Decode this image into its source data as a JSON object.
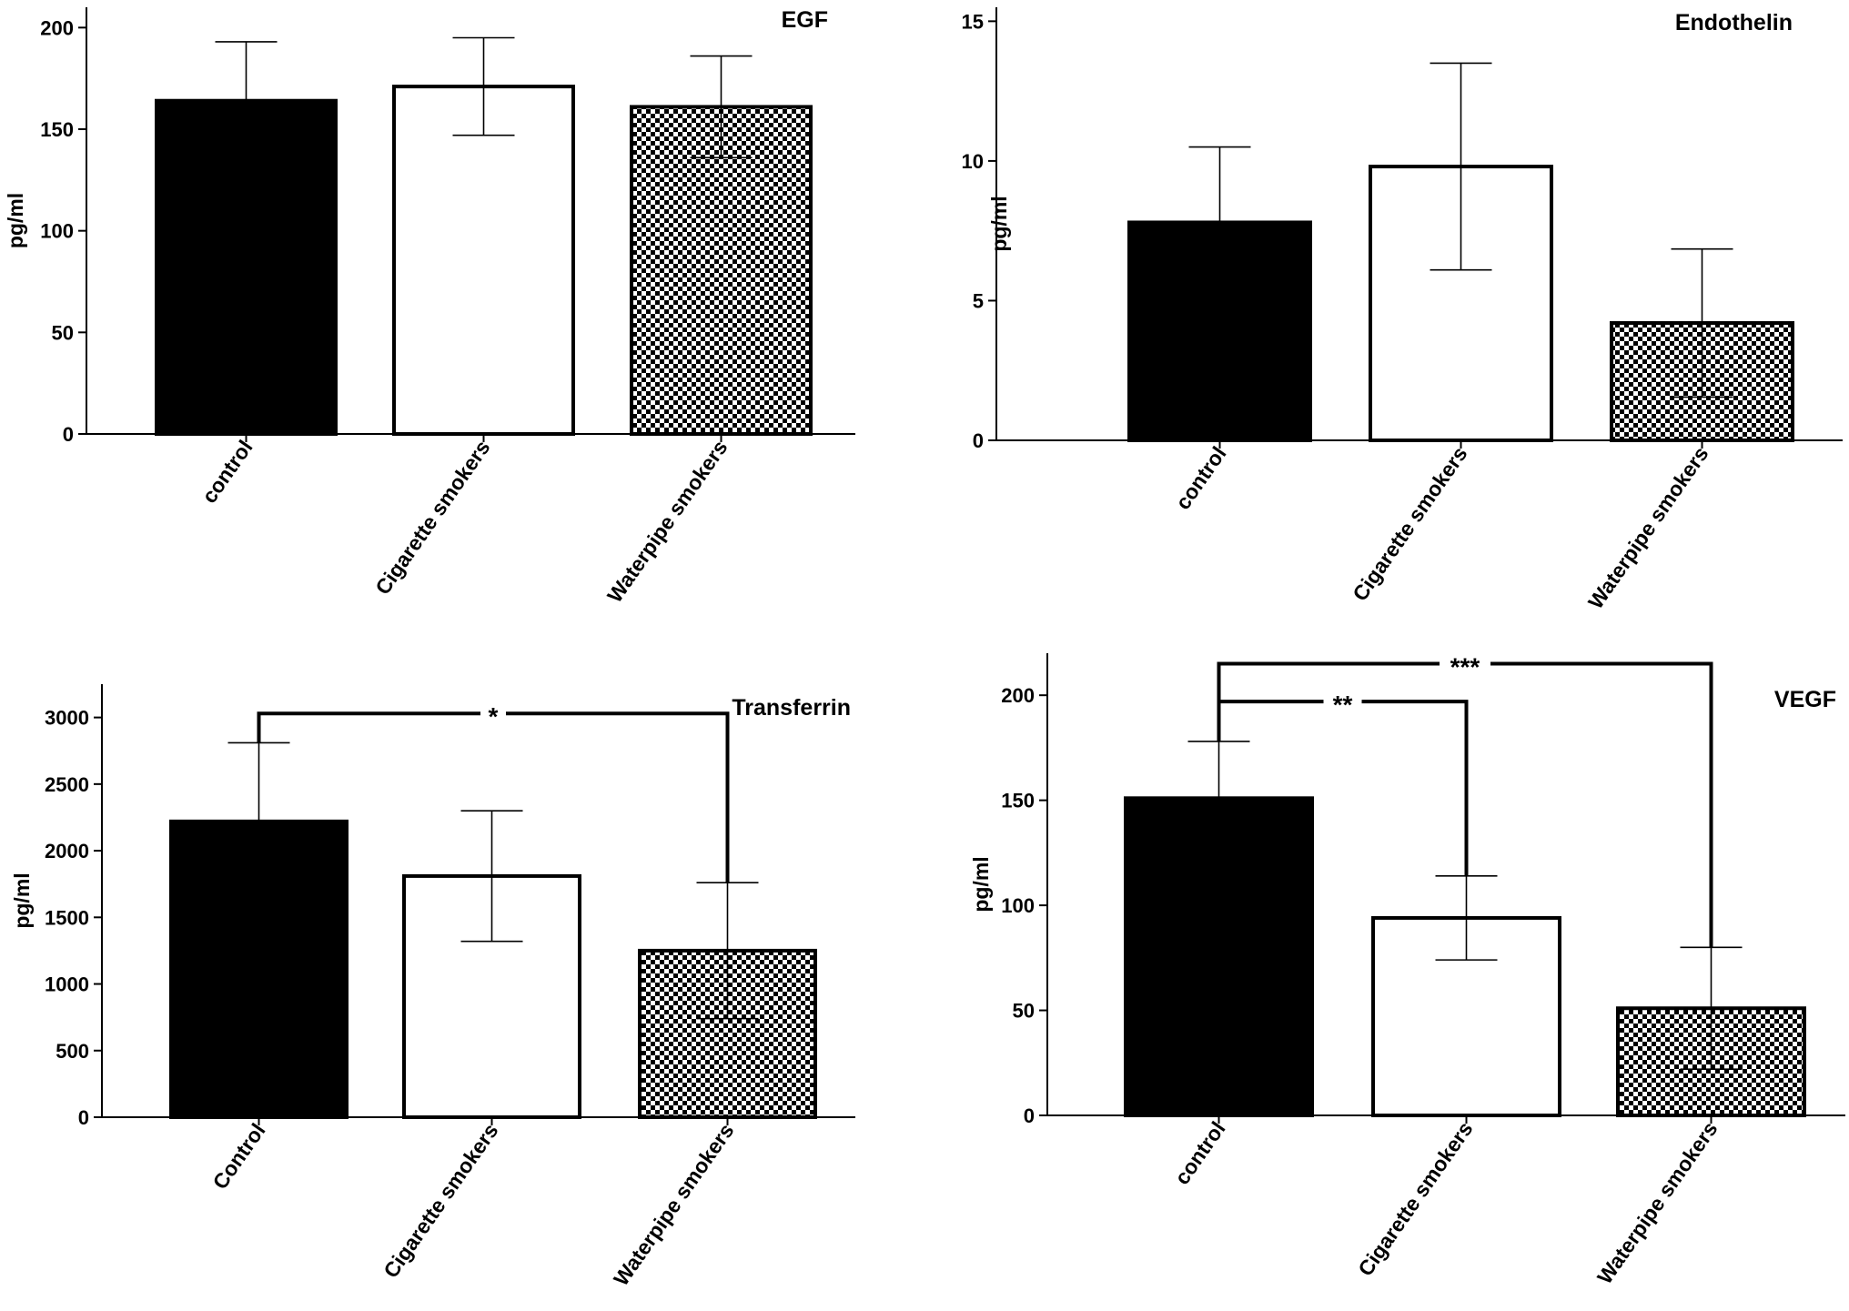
{
  "chart_data": [
    {
      "type": "bar",
      "title": "EGF",
      "ylabel": "pg/ml",
      "xlabel": "",
      "categories": [
        "control",
        "Cigarette smokers",
        "Waterpipe smokers"
      ],
      "values": [
        164,
        171,
        161
      ],
      "errors": [
        29,
        24,
        25
      ],
      "ylim": [
        0,
        210
      ],
      "yticks": [
        0,
        50,
        100,
        150,
        200
      ],
      "fills": [
        "solid",
        "open",
        "checkered"
      ],
      "significance": []
    },
    {
      "type": "bar",
      "title": "Endothelin",
      "ylabel": "pg/ml",
      "xlabel": "",
      "categories": [
        "control",
        "Cigarette smokers",
        "Waterpipe smokers"
      ],
      "values": [
        7.8,
        9.8,
        4.2
      ],
      "errors": [
        2.7,
        3.7,
        2.65
      ],
      "ylim": [
        0,
        15.5
      ],
      "yticks": [
        0,
        5,
        10,
        15
      ],
      "fills": [
        "solid",
        "open",
        "checkered"
      ],
      "significance": []
    },
    {
      "type": "bar",
      "title": "Transferrin",
      "ylabel": "pg/ml",
      "xlabel": "",
      "categories": [
        "Control",
        "Cigarette smokers",
        "Waterpipe smokers"
      ],
      "values": [
        2220,
        1810,
        1250
      ],
      "errors": [
        590,
        490,
        510
      ],
      "ylim": [
        0,
        3250
      ],
      "yticks": [
        0,
        500,
        1000,
        1500,
        2000,
        2500,
        3000
      ],
      "fills": [
        "solid",
        "open",
        "checkered"
      ],
      "significance": [
        {
          "from": 0,
          "to": 2,
          "label": "*",
          "level": 3030
        }
      ]
    },
    {
      "type": "bar",
      "title": "VEGF",
      "ylabel": "pg/ml",
      "xlabel": "",
      "categories": [
        "control",
        "Cigarette smokers",
        "Waterpipe smokers"
      ],
      "values": [
        151,
        94,
        51
      ],
      "errors": [
        27,
        20,
        29
      ],
      "ylim": [
        0,
        220
      ],
      "yticks": [
        0,
        50,
        100,
        150,
        200
      ],
      "fills": [
        "solid",
        "open",
        "checkered"
      ],
      "significance": [
        {
          "from": 0,
          "to": 1,
          "label": "**",
          "level": 197
        },
        {
          "from": 0,
          "to": 2,
          "label": "***",
          "level": 215
        }
      ]
    }
  ],
  "colors": {
    "ink": "#000000",
    "background": "#ffffff"
  }
}
